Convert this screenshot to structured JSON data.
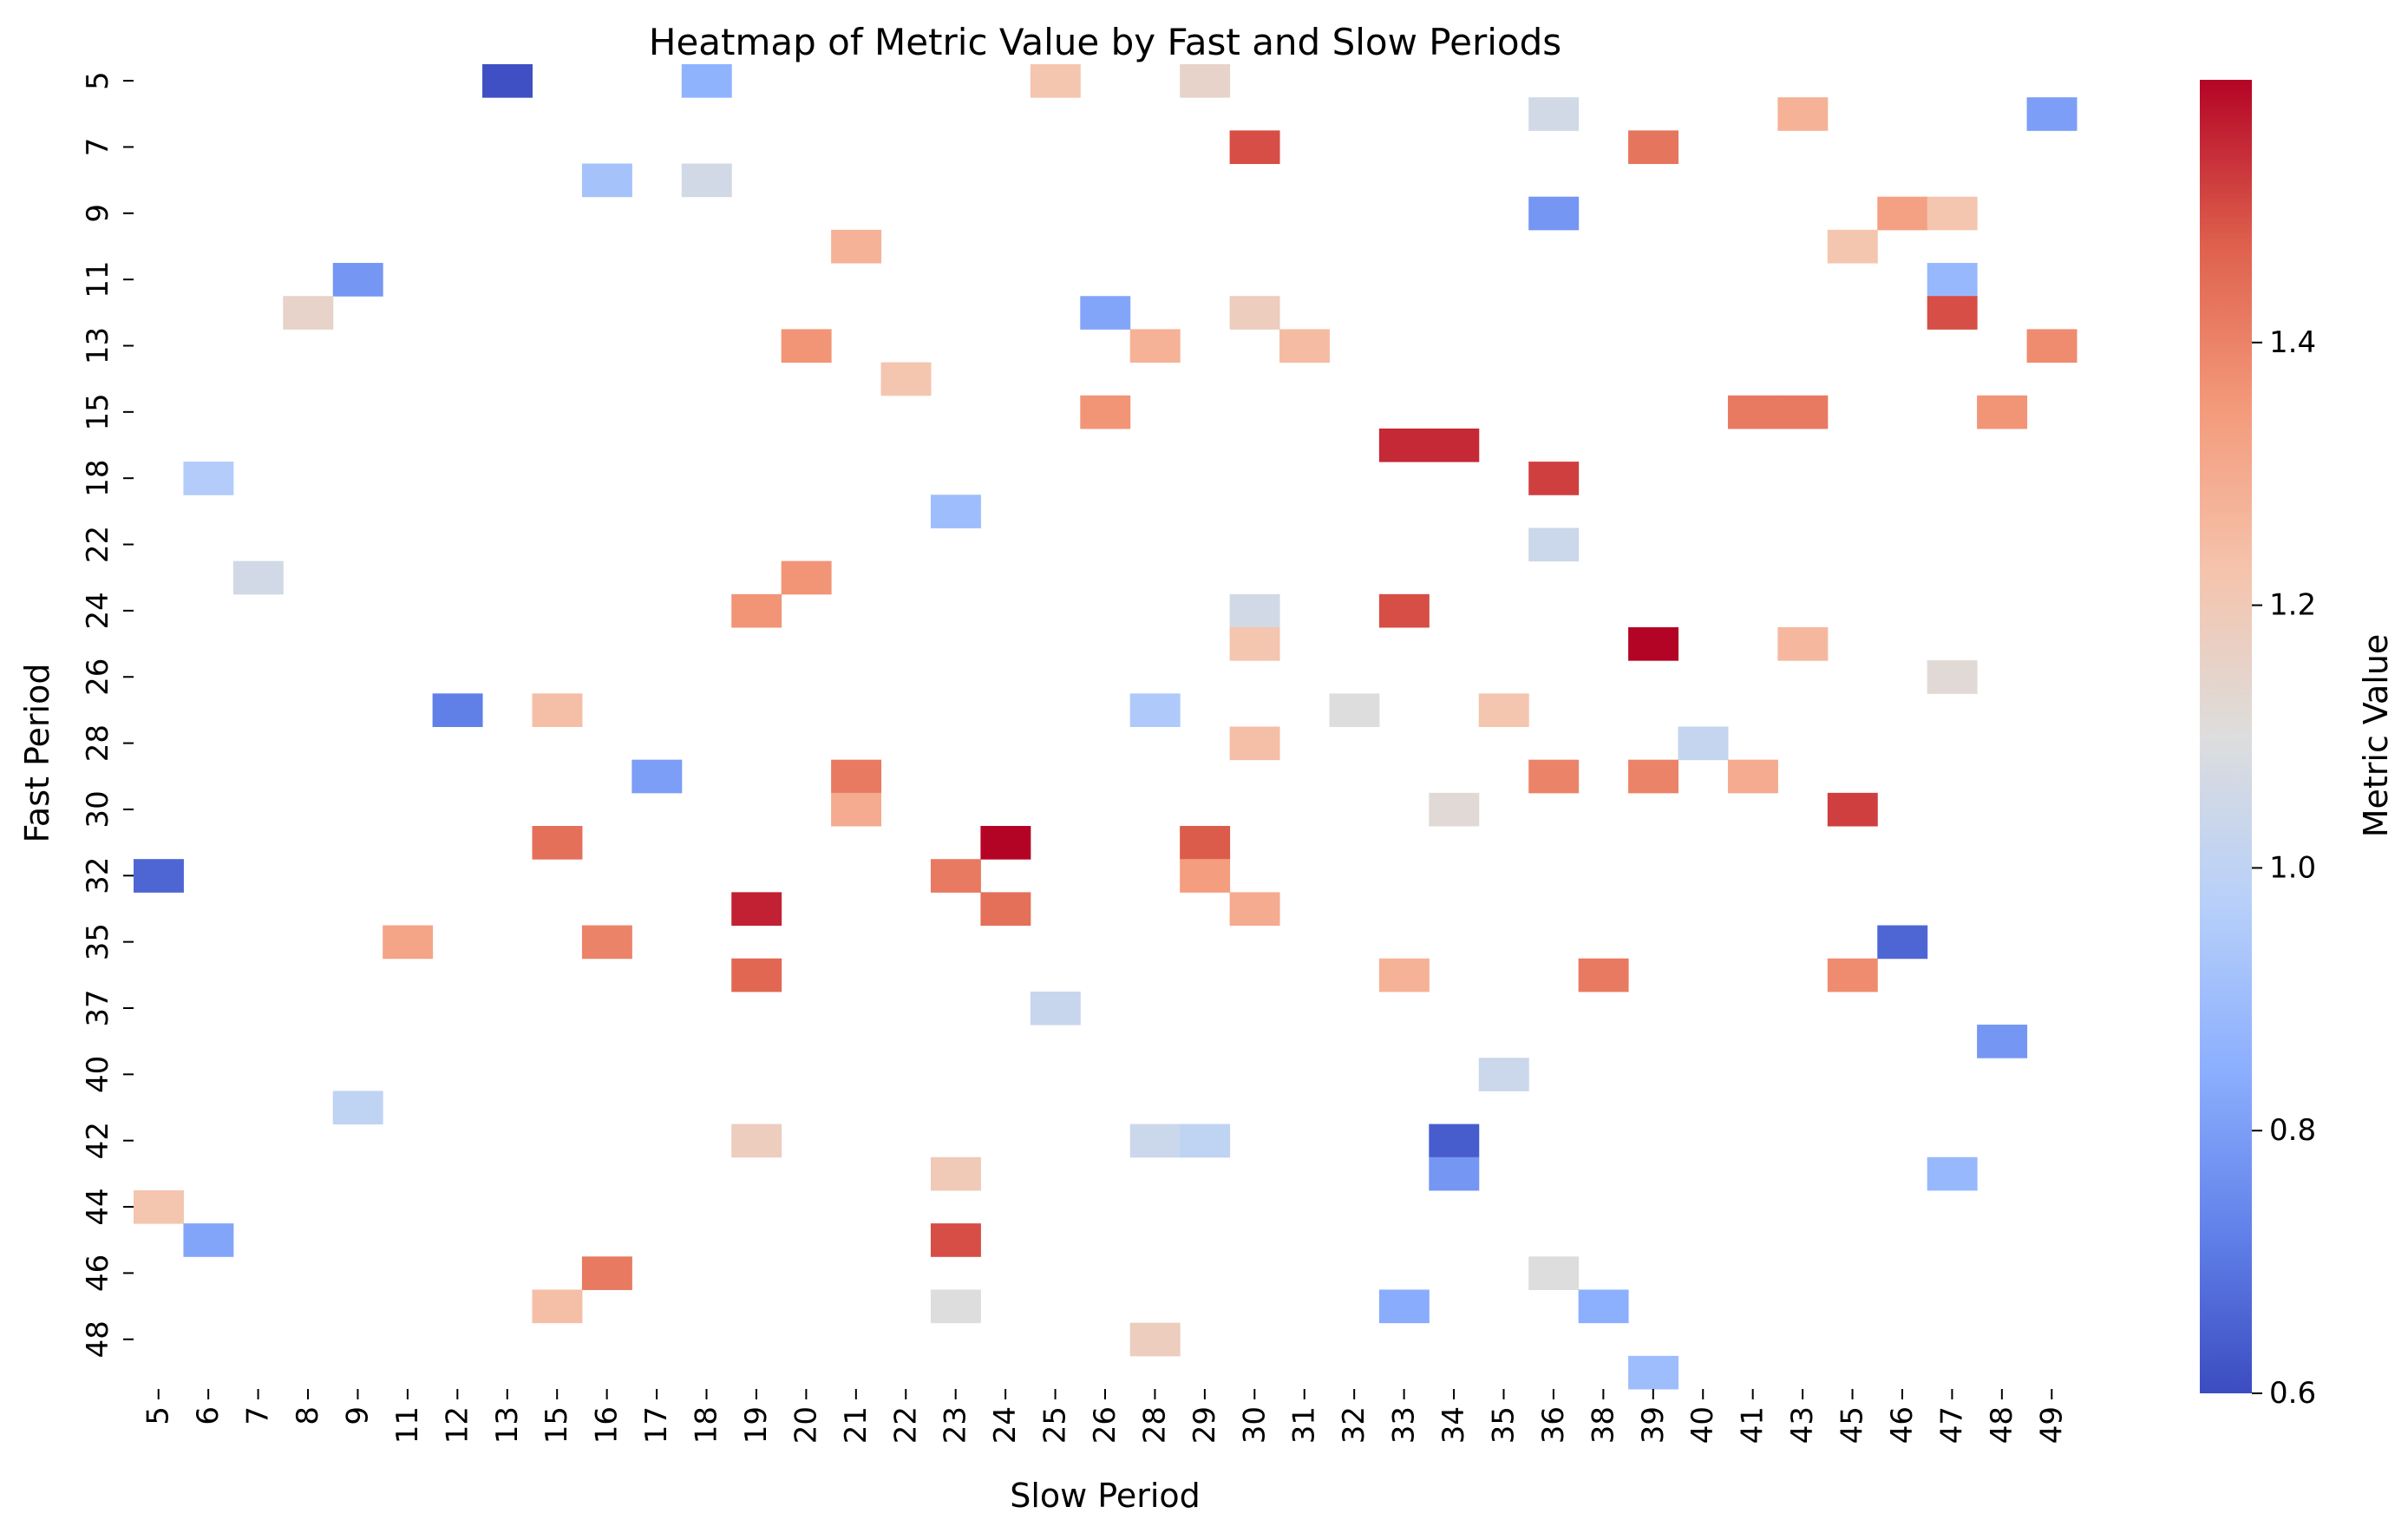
{
  "chart_data": {
    "type": "heatmap",
    "title": "Heatmap of Metric Value by Fast and Slow Periods",
    "xlabel": "Slow Period",
    "ylabel": "Fast Period",
    "colorbar_label": "Metric Value",
    "colormap": "coolwarm",
    "value_range": [
      0.6,
      1.6
    ],
    "colorbar_ticks": [
      "0.6",
      "0.8",
      "1.0",
      "1.2",
      "1.4"
    ],
    "x_categories": [
      "5",
      "6",
      "7",
      "8",
      "9",
      "11",
      "12",
      "13",
      "15",
      "16",
      "17",
      "18",
      "19",
      "20",
      "21",
      "22",
      "23",
      "24",
      "25",
      "26",
      "28",
      "29",
      "30",
      "31",
      "32",
      "33",
      "34",
      "35",
      "36",
      "38",
      "39",
      "40",
      "41",
      "43",
      "45",
      "46",
      "47",
      "48",
      "49"
    ],
    "y_categories": [
      "5",
      "6",
      "7",
      "8",
      "9",
      "10",
      "11",
      "12",
      "13",
      "14",
      "15",
      "16",
      "18",
      "20",
      "22",
      "23",
      "24",
      "25",
      "26",
      "27",
      "28",
      "29",
      "30",
      "31",
      "32",
      "34",
      "35",
      "36",
      "37",
      "38",
      "40",
      "41",
      "42",
      "43",
      "44",
      "45",
      "46",
      "47",
      "48",
      "49"
    ],
    "y_tick_labels": [
      "5",
      "7",
      "9",
      "11",
      "13",
      "15",
      "18",
      "22",
      "24",
      "26",
      "28",
      "30",
      "32",
      "35",
      "37",
      "40",
      "42",
      "44",
      "46",
      "48"
    ],
    "cells": [
      {
        "x": "13",
        "y": "5",
        "value": 0.61
      },
      {
        "x": "18",
        "y": "5",
        "value": 0.86
      },
      {
        "x": "25",
        "y": "5",
        "value": 1.22
      },
      {
        "x": "29",
        "y": "5",
        "value": 1.15
      },
      {
        "x": "36",
        "y": "6",
        "value": 1.06
      },
      {
        "x": "43",
        "y": "6",
        "value": 1.28
      },
      {
        "x": "49",
        "y": "6",
        "value": 0.8
      },
      {
        "x": "30",
        "y": "7",
        "value": 1.5
      },
      {
        "x": "39",
        "y": "7",
        "value": 1.43
      },
      {
        "x": "16",
        "y": "8",
        "value": 0.92
      },
      {
        "x": "18",
        "y": "8",
        "value": 1.06
      },
      {
        "x": "36",
        "y": "9",
        "value": 0.78
      },
      {
        "x": "46",
        "y": "9",
        "value": 1.33
      },
      {
        "x": "47",
        "y": "9",
        "value": 1.22
      },
      {
        "x": "21",
        "y": "10",
        "value": 1.28
      },
      {
        "x": "45",
        "y": "10",
        "value": 1.22
      },
      {
        "x": "9",
        "y": "11",
        "value": 0.78
      },
      {
        "x": "47",
        "y": "11",
        "value": 0.88
      },
      {
        "x": "8",
        "y": "12",
        "value": 1.15
      },
      {
        "x": "26",
        "y": "12",
        "value": 0.82
      },
      {
        "x": "30",
        "y": "12",
        "value": 1.18
      },
      {
        "x": "47",
        "y": "12",
        "value": 1.5
      },
      {
        "x": "20",
        "y": "13",
        "value": 1.36
      },
      {
        "x": "28",
        "y": "13",
        "value": 1.28
      },
      {
        "x": "31",
        "y": "13",
        "value": 1.25
      },
      {
        "x": "49",
        "y": "13",
        "value": 1.38
      },
      {
        "x": "22",
        "y": "14",
        "value": 1.22
      },
      {
        "x": "26",
        "y": "15",
        "value": 1.36
      },
      {
        "x": "41",
        "y": "15",
        "value": 1.42
      },
      {
        "x": "43",
        "y": "15",
        "value": 1.42
      },
      {
        "x": "48",
        "y": "15",
        "value": 1.36
      },
      {
        "x": "33",
        "y": "16",
        "value": 1.55
      },
      {
        "x": "34",
        "y": "16",
        "value": 1.55
      },
      {
        "x": "6",
        "y": "18",
        "value": 0.96
      },
      {
        "x": "36",
        "y": "18",
        "value": 1.52
      },
      {
        "x": "23",
        "y": "20",
        "value": 0.9
      },
      {
        "x": "36",
        "y": "22",
        "value": 1.04
      },
      {
        "x": "7",
        "y": "23",
        "value": 1.06
      },
      {
        "x": "20",
        "y": "23",
        "value": 1.36
      },
      {
        "x": "19",
        "y": "24",
        "value": 1.36
      },
      {
        "x": "30",
        "y": "24",
        "value": 1.06
      },
      {
        "x": "33",
        "y": "24",
        "value": 1.5
      },
      {
        "x": "30",
        "y": "25",
        "value": 1.22
      },
      {
        "x": "39",
        "y": "25",
        "value": 1.6
      },
      {
        "x": "43",
        "y": "25",
        "value": 1.26
      },
      {
        "x": "47",
        "y": "26",
        "value": 1.12
      },
      {
        "x": "12",
        "y": "27",
        "value": 0.72
      },
      {
        "x": "15",
        "y": "27",
        "value": 1.24
      },
      {
        "x": "28",
        "y": "27",
        "value": 0.95
      },
      {
        "x": "32",
        "y": "27",
        "value": 1.1
      },
      {
        "x": "35",
        "y": "27",
        "value": 1.22
      },
      {
        "x": "30",
        "y": "28",
        "value": 1.24
      },
      {
        "x": "40",
        "y": "28",
        "value": 1.02
      },
      {
        "x": "17",
        "y": "29",
        "value": 0.8
      },
      {
        "x": "21",
        "y": "29",
        "value": 1.42
      },
      {
        "x": "36",
        "y": "29",
        "value": 1.4
      },
      {
        "x": "39",
        "y": "29",
        "value": 1.4
      },
      {
        "x": "41",
        "y": "29",
        "value": 1.3
      },
      {
        "x": "21",
        "y": "30",
        "value": 1.3
      },
      {
        "x": "34",
        "y": "30",
        "value": 1.12
      },
      {
        "x": "45",
        "y": "30",
        "value": 1.52
      },
      {
        "x": "15",
        "y": "31",
        "value": 1.44
      },
      {
        "x": "24",
        "y": "31",
        "value": 1.6
      },
      {
        "x": "29",
        "y": "31",
        "value": 1.48
      },
      {
        "x": "5",
        "y": "32",
        "value": 0.66
      },
      {
        "x": "23",
        "y": "32",
        "value": 1.42
      },
      {
        "x": "29",
        "y": "32",
        "value": 1.34
      },
      {
        "x": "19",
        "y": "34",
        "value": 1.56
      },
      {
        "x": "24",
        "y": "34",
        "value": 1.44
      },
      {
        "x": "30",
        "y": "34",
        "value": 1.3
      },
      {
        "x": "11",
        "y": "35",
        "value": 1.32
      },
      {
        "x": "16",
        "y": "35",
        "value": 1.4
      },
      {
        "x": "46",
        "y": "35",
        "value": 0.66
      },
      {
        "x": "19",
        "y": "36",
        "value": 1.46
      },
      {
        "x": "33",
        "y": "36",
        "value": 1.28
      },
      {
        "x": "38",
        "y": "36",
        "value": 1.42
      },
      {
        "x": "45",
        "y": "36",
        "value": 1.38
      },
      {
        "x": "25",
        "y": "37",
        "value": 1.03
      },
      {
        "x": "48",
        "y": "38",
        "value": 0.78
      },
      {
        "x": "35",
        "y": "40",
        "value": 1.04
      },
      {
        "x": "9",
        "y": "41",
        "value": 1.0
      },
      {
        "x": "19",
        "y": "42",
        "value": 1.18
      },
      {
        "x": "28",
        "y": "42",
        "value": 1.04
      },
      {
        "x": "29",
        "y": "42",
        "value": 1.0
      },
      {
        "x": "34",
        "y": "42",
        "value": 0.64
      },
      {
        "x": "23",
        "y": "43",
        "value": 1.2
      },
      {
        "x": "34",
        "y": "43",
        "value": 0.78
      },
      {
        "x": "47",
        "y": "43",
        "value": 0.88
      },
      {
        "x": "5",
        "y": "44",
        "value": 1.22
      },
      {
        "x": "6",
        "y": "45",
        "value": 0.82
      },
      {
        "x": "23",
        "y": "45",
        "value": 1.5
      },
      {
        "x": "16",
        "y": "46",
        "value": 1.42
      },
      {
        "x": "36",
        "y": "46",
        "value": 1.1
      },
      {
        "x": "15",
        "y": "47",
        "value": 1.24
      },
      {
        "x": "23",
        "y": "47",
        "value": 1.1
      },
      {
        "x": "33",
        "y": "47",
        "value": 0.84
      },
      {
        "x": "38",
        "y": "47",
        "value": 0.85
      },
      {
        "x": "28",
        "y": "48",
        "value": 1.18
      },
      {
        "x": "39",
        "y": "49",
        "value": 0.9
      }
    ]
  }
}
